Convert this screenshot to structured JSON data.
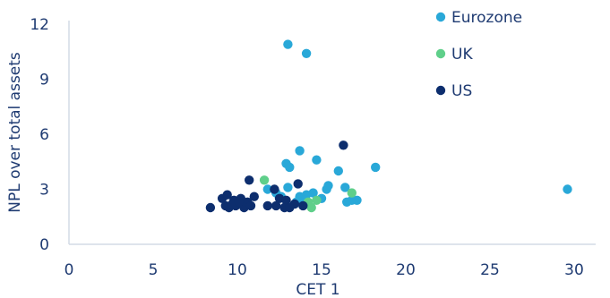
{
  "chart_data": {
    "type": "scatter",
    "title": "",
    "xlabel": "CET 1",
    "ylabel": "NPL over total assets",
    "xlim": [
      0,
      30
    ],
    "ylim": [
      0,
      12
    ],
    "x_ticks": [
      0,
      5,
      10,
      15,
      20,
      25,
      30
    ],
    "y_ticks": [
      0,
      3,
      6,
      9,
      12
    ],
    "grid": false,
    "legend_position": "top-right",
    "colors": {
      "axis": "#d4dbe6",
      "text": "#1f3b72",
      "Eurozone": "#29a8d8",
      "UK": "#5fcf8a",
      "US": "#0d2e6e"
    },
    "series": [
      {
        "name": "Eurozone",
        "points": [
          [
            13.0,
            10.9
          ],
          [
            14.1,
            10.4
          ],
          [
            29.6,
            3.0
          ],
          [
            18.2,
            4.2
          ],
          [
            14.7,
            4.6
          ],
          [
            13.7,
            5.1
          ],
          [
            12.9,
            4.4
          ],
          [
            13.1,
            4.2
          ],
          [
            16.0,
            4.0
          ],
          [
            15.3,
            3.0
          ],
          [
            15.4,
            3.2
          ],
          [
            16.4,
            3.1
          ],
          [
            11.8,
            3.0
          ],
          [
            12.3,
            2.8
          ],
          [
            12.6,
            2.6
          ],
          [
            13.0,
            3.1
          ],
          [
            13.7,
            2.6
          ],
          [
            14.1,
            2.7
          ],
          [
            14.5,
            2.8
          ],
          [
            15.0,
            2.5
          ],
          [
            16.5,
            2.3
          ],
          [
            16.8,
            2.4
          ],
          [
            17.1,
            2.4
          ],
          [
            13.5,
            2.3
          ],
          [
            14.0,
            2.4
          ]
        ]
      },
      {
        "name": "UK",
        "points": [
          [
            11.6,
            3.5
          ],
          [
            14.2,
            2.3
          ],
          [
            14.4,
            2.0
          ],
          [
            14.7,
            2.4
          ],
          [
            16.8,
            2.8
          ]
        ]
      },
      {
        "name": "US",
        "points": [
          [
            16.3,
            5.4
          ],
          [
            10.7,
            3.5
          ],
          [
            13.6,
            3.3
          ],
          [
            12.2,
            3.0
          ],
          [
            9.1,
            2.5
          ],
          [
            9.4,
            2.7
          ],
          [
            9.8,
            2.4
          ],
          [
            10.2,
            2.5
          ],
          [
            10.6,
            2.3
          ],
          [
            11.0,
            2.6
          ],
          [
            12.5,
            2.5
          ],
          [
            12.9,
            2.4
          ],
          [
            13.4,
            2.2
          ],
          [
            13.9,
            2.1
          ],
          [
            8.4,
            2.0
          ],
          [
            9.3,
            2.1
          ],
          [
            9.5,
            2.0
          ],
          [
            9.9,
            2.1
          ],
          [
            10.4,
            2.0
          ],
          [
            10.8,
            2.1
          ],
          [
            11.8,
            2.1
          ],
          [
            12.3,
            2.1
          ],
          [
            12.8,
            2.0
          ],
          [
            13.1,
            2.0
          ],
          [
            9.7,
            2.2
          ],
          [
            10.1,
            2.3
          ]
        ]
      }
    ]
  }
}
